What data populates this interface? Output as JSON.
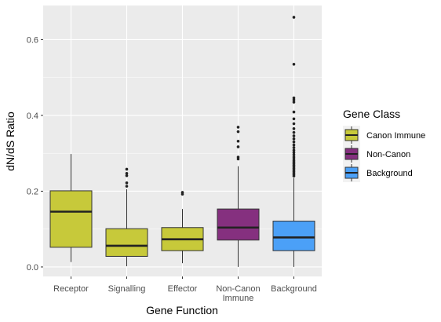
{
  "chart_data": {
    "type": "box",
    "xlabel": "Gene Function",
    "ylabel": "dN/dS Ratio",
    "ylim": [
      -0.025,
      0.69
    ],
    "yticks": [
      0.0,
      0.2,
      0.4,
      0.6
    ],
    "ytick_labels": [
      "0.0",
      "0.2",
      "0.4",
      "0.6"
    ],
    "grid": true,
    "legend": {
      "title": "Gene Class",
      "position": "right",
      "entries": [
        {
          "label": "Canon Immune",
          "color": "#c7c93a"
        },
        {
          "label": "Non-Canon",
          "color": "#85307f"
        },
        {
          "label": "Background",
          "color": "#4ba0f7"
        }
      ]
    },
    "categories": [
      {
        "label": [
          "Receptor"
        ],
        "class": "Canon Immune",
        "whisker_low": 0.013,
        "q1": 0.052,
        "median": 0.146,
        "q3": 0.201,
        "whisker_high": 0.298,
        "outliers": []
      },
      {
        "label": [
          "Signalling"
        ],
        "class": "Canon Immune",
        "whisker_low": 0.002,
        "q1": 0.028,
        "median": 0.056,
        "q3": 0.101,
        "whisker_high": 0.205,
        "outliers": [
          0.213,
          0.222,
          0.241,
          0.247,
          0.258
        ]
      },
      {
        "label": [
          "Effector"
        ],
        "class": "Canon Immune",
        "whisker_low": 0.01,
        "q1": 0.043,
        "median": 0.073,
        "q3": 0.104,
        "whisker_high": 0.153,
        "outliers": [
          0.192,
          0.197
        ]
      },
      {
        "label": [
          "Non-Canon",
          "Immune"
        ],
        "class": "Non-Canon",
        "whisker_low": 0.0,
        "q1": 0.071,
        "median": 0.104,
        "q3": 0.153,
        "whisker_high": 0.266,
        "outliers": [
          0.285,
          0.29,
          0.317,
          0.332,
          0.357,
          0.369
        ]
      },
      {
        "label": [
          "Background"
        ],
        "class": "Background",
        "whisker_low": 0.0,
        "q1": 0.043,
        "median": 0.078,
        "q3": 0.121,
        "whisker_high": 0.235,
        "outliers": [
          0.24,
          0.244,
          0.248,
          0.252,
          0.256,
          0.26,
          0.264,
          0.268,
          0.272,
          0.276,
          0.28,
          0.285,
          0.29,
          0.296,
          0.302,
          0.308,
          0.315,
          0.322,
          0.33,
          0.338,
          0.346,
          0.355,
          0.365,
          0.378,
          0.391,
          0.409,
          0.435,
          0.441,
          0.446,
          0.535,
          0.659
        ]
      }
    ]
  }
}
